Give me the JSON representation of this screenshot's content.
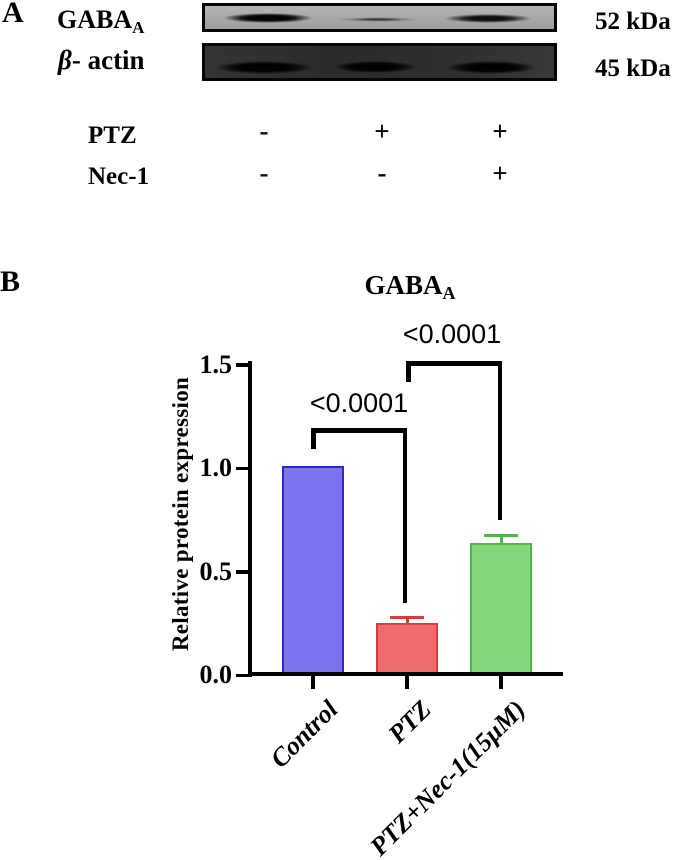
{
  "figure": {
    "panel_a": {
      "label": "A",
      "rows": [
        {
          "protein": "GABA",
          "subscript": "A",
          "kda": "52 kDa"
        },
        {
          "symbol": "β",
          "rest": "- actin",
          "kda": "45 kDa"
        }
      ],
      "blots": [
        {
          "protein": "GABAA",
          "style": "light",
          "band_intensities": [
            "strong",
            "faint",
            "medium"
          ]
        },
        {
          "protein": "beta-actin",
          "style": "dark",
          "band_intensities": [
            "strong",
            "strong",
            "strong"
          ]
        }
      ],
      "treatments": [
        {
          "label": "PTZ",
          "signs": [
            "-",
            "+",
            "+"
          ]
        },
        {
          "label": "Nec-1",
          "signs": [
            "-",
            "-",
            "+"
          ]
        }
      ]
    },
    "panel_b": {
      "label": "B",
      "title": "GABA",
      "title_subscript": "A"
    }
  },
  "chart_data": {
    "type": "bar",
    "title": "GABA(A)",
    "categories": [
      "Control",
      "PTZ",
      "PTZ+Nec-1(15μM)"
    ],
    "values": [
      1.0,
      0.24,
      0.63
    ],
    "errors": [
      0,
      0.03,
      0.04
    ],
    "bar_colors": [
      {
        "fill": "#7b74ee",
        "border": "#2b2bc4"
      },
      {
        "fill": "#f06c6c",
        "border": "#d83c3c"
      },
      {
        "fill": "#84d77b",
        "border": "#4db845"
      }
    ],
    "xlabel": "",
    "ylabel": "Relative protein expression",
    "ylim": [
      0,
      1.5
    ],
    "yticks": [
      "0.0",
      "0.5",
      "1.0",
      "1.5"
    ],
    "grid": false,
    "legend": "none",
    "significance": [
      {
        "between": [
          "Control",
          "PTZ"
        ],
        "p": "<0.0001"
      },
      {
        "between": [
          "PTZ",
          "PTZ+Nec-1(15μM)"
        ],
        "p": "<0.0001"
      }
    ]
  }
}
